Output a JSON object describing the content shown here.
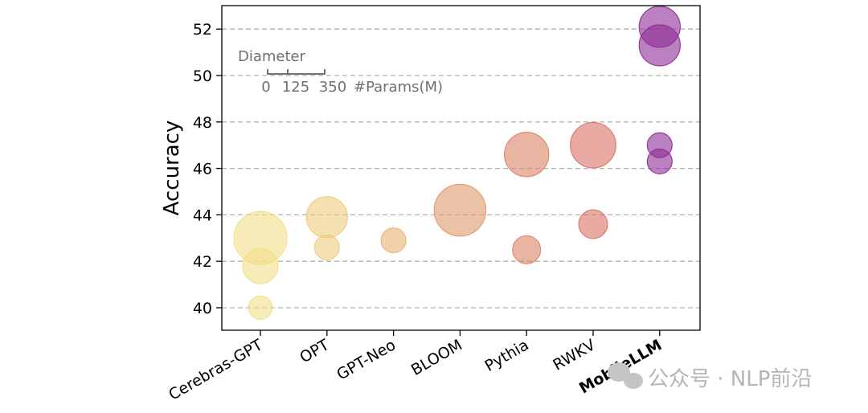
{
  "chart_data": {
    "type": "scatter",
    "ylabel": "Accuracy",
    "ylim": [
      39,
      53
    ],
    "yticks": [
      40,
      42,
      44,
      46,
      48,
      50,
      52
    ],
    "grid": "horizontal dashed",
    "categories": [
      "Cerebras-GPT",
      "OPT",
      "GPT-Neo",
      "BLOOM",
      "Pythia",
      "RWKV",
      "MobileLLM"
    ],
    "points": [
      {
        "category": "Cerebras-GPT",
        "accuracy": 43.0,
        "params_m": 590,
        "color": "#f2df88"
      },
      {
        "category": "Cerebras-GPT",
        "accuracy": 41.8,
        "params_m": 256,
        "color": "#f2df88"
      },
      {
        "category": "Cerebras-GPT",
        "accuracy": 40.0,
        "params_m": 111,
        "color": "#f2df88"
      },
      {
        "category": "OPT",
        "accuracy": 43.9,
        "params_m": 350,
        "color": "#eecb7d"
      },
      {
        "category": "OPT",
        "accuracy": 42.6,
        "params_m": 125,
        "color": "#eecb7d"
      },
      {
        "category": "GPT-Neo",
        "accuracy": 42.9,
        "params_m": 125,
        "color": "#e8b274"
      },
      {
        "category": "BLOOM",
        "accuracy": 44.2,
        "params_m": 560,
        "color": "#df9a6a"
      },
      {
        "category": "Pythia",
        "accuracy": 46.6,
        "params_m": 410,
        "color": "#db8466"
      },
      {
        "category": "Pythia",
        "accuracy": 42.5,
        "params_m": 160,
        "color": "#db8466"
      },
      {
        "category": "RWKV",
        "accuracy": 47.0,
        "params_m": 430,
        "color": "#d97266"
      },
      {
        "category": "RWKV",
        "accuracy": 43.6,
        "params_m": 169,
        "color": "#d97266"
      },
      {
        "category": "MobileLLM",
        "accuracy": 52.1,
        "params_m": 350,
        "color": "#8e2c96"
      },
      {
        "category": "MobileLLM",
        "accuracy": 51.3,
        "params_m": 350,
        "color": "#8e2c96"
      },
      {
        "category": "MobileLLM",
        "accuracy": 47.0,
        "params_m": 125,
        "color": "#8e2c96"
      },
      {
        "category": "MobileLLM",
        "accuracy": 46.3,
        "params_m": 125,
        "color": "#8e2c96"
      }
    ],
    "size_legend": {
      "title": "Diameter",
      "labels": [
        "0",
        "125",
        "350"
      ],
      "unit": "#Params(M)"
    }
  },
  "watermark": "公众号 · NLP前沿"
}
